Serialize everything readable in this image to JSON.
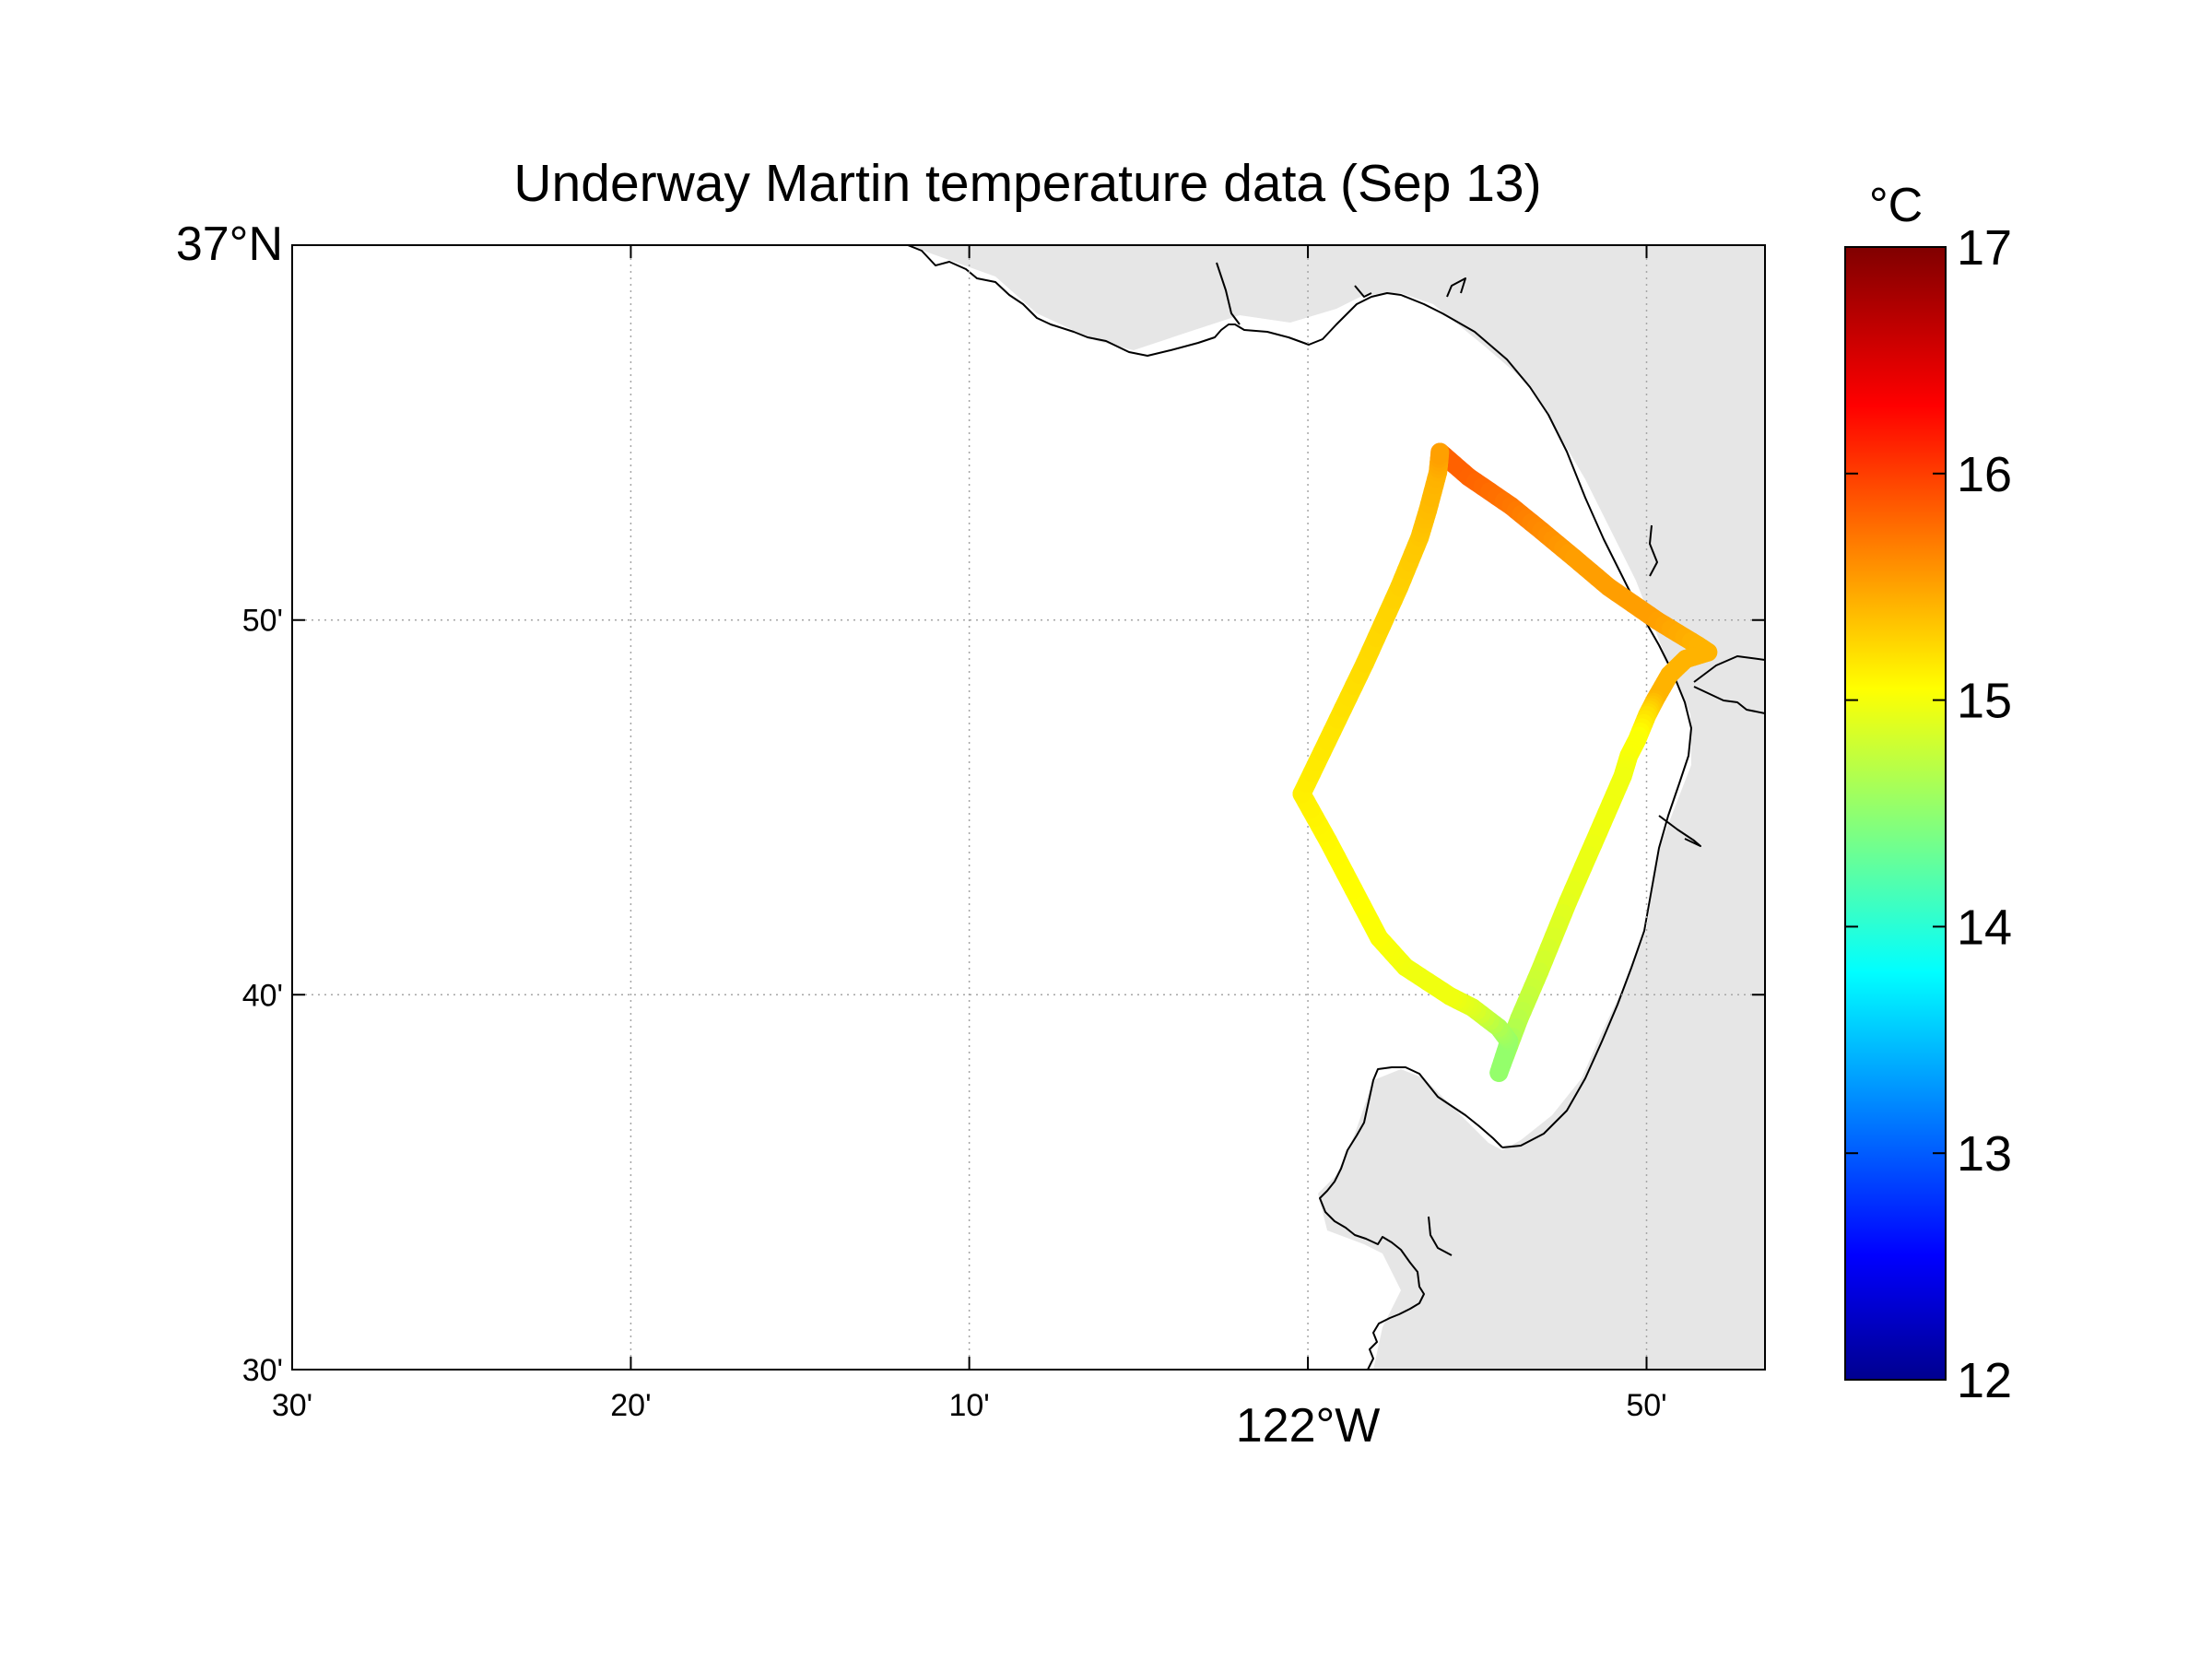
{
  "figure": {
    "title": "Underway Martin temperature data (Sep 13)"
  },
  "map": {
    "lon_range": [
      -122.5,
      -121.775
    ],
    "lat_range": [
      36.5,
      37.0
    ],
    "lat_ticks": [
      {
        "value": 37.0,
        "label": "37°N",
        "main": true
      },
      {
        "value": 36.8333,
        "label": "50'",
        "main": false
      },
      {
        "value": 36.6667,
        "label": "40'",
        "main": false
      },
      {
        "value": 36.5,
        "label": "30'",
        "main": false
      }
    ],
    "lon_ticks": [
      {
        "value": -122.5,
        "label": "30'",
        "main": false
      },
      {
        "value": -122.3333,
        "label": "20'",
        "main": false
      },
      {
        "value": -122.1667,
        "label": "10'",
        "main": false
      },
      {
        "value": -122.0,
        "label": "122°W",
        "main": true
      },
      {
        "value": -121.8333,
        "label": "50'",
        "main": false
      }
    ],
    "grid": true,
    "land_color": "#e6e6e6"
  },
  "chart_data": {
    "type": "scatter",
    "title": "Underway Martin temperature data (Sep 13)",
    "xlabel": "",
    "ylabel": "",
    "xlim": [
      -122.5,
      -121.775
    ],
    "ylim": [
      36.5,
      37.0
    ],
    "colorbar": {
      "label": "°C",
      "range": [
        12,
        17
      ],
      "ticks": [
        12,
        13,
        14,
        15,
        16,
        17
      ],
      "colormap": "jet"
    },
    "track": [
      {
        "lon": -121.935,
        "lat": 36.908,
        "temp": 15.9
      },
      {
        "lon": -121.921,
        "lat": 36.897,
        "temp": 15.9
      },
      {
        "lon": -121.9,
        "lat": 36.884,
        "temp": 15.8
      },
      {
        "lon": -121.885,
        "lat": 36.873,
        "temp": 15.7
      },
      {
        "lon": -121.869,
        "lat": 36.861,
        "temp": 15.6
      },
      {
        "lon": -121.852,
        "lat": 36.848,
        "temp": 15.6
      },
      {
        "lon": -121.828,
        "lat": 36.833,
        "temp": 15.6
      },
      {
        "lon": -121.808,
        "lat": 36.822,
        "temp": 15.5
      },
      {
        "lon": -121.803,
        "lat": 36.819,
        "temp": 15.5
      },
      {
        "lon": -121.814,
        "lat": 36.816,
        "temp": 15.5
      },
      {
        "lon": -121.822,
        "lat": 36.809,
        "temp": 15.5
      },
      {
        "lon": -121.829,
        "lat": 36.798,
        "temp": 15.5
      },
      {
        "lon": -121.833,
        "lat": 36.791,
        "temp": 15.3
      },
      {
        "lon": -121.838,
        "lat": 36.78,
        "temp": 15.1
      },
      {
        "lon": -121.842,
        "lat": 36.773,
        "temp": 15.1
      },
      {
        "lon": -121.845,
        "lat": 36.764,
        "temp": 15.05
      },
      {
        "lon": -121.857,
        "lat": 36.739,
        "temp": 15.05
      },
      {
        "lon": -121.872,
        "lat": 36.708,
        "temp": 15.0
      },
      {
        "lon": -121.886,
        "lat": 36.677,
        "temp": 14.9
      },
      {
        "lon": -121.896,
        "lat": 36.656,
        "temp": 14.8
      },
      {
        "lon": -121.906,
        "lat": 36.632,
        "temp": 14.6
      },
      {
        "lon": -121.901,
        "lat": 36.646,
        "temp": 14.6
      },
      {
        "lon": -121.906,
        "lat": 36.652,
        "temp": 14.7
      },
      {
        "lon": -121.919,
        "lat": 36.661,
        "temp": 14.95
      },
      {
        "lon": -121.93,
        "lat": 36.666,
        "temp": 15.05
      },
      {
        "lon": -121.952,
        "lat": 36.679,
        "temp": 15.05
      },
      {
        "lon": -121.965,
        "lat": 36.692,
        "temp": 15.1
      },
      {
        "lon": -121.99,
        "lat": 36.735,
        "temp": 15.15
      },
      {
        "lon": -122.003,
        "lat": 36.756,
        "temp": 15.2
      },
      {
        "lon": -121.988,
        "lat": 36.784,
        "temp": 15.25
      },
      {
        "lon": -121.972,
        "lat": 36.814,
        "temp": 15.3
      },
      {
        "lon": -121.955,
        "lat": 36.848,
        "temp": 15.35
      },
      {
        "lon": -121.945,
        "lat": 36.87,
        "temp": 15.4
      },
      {
        "lon": -121.941,
        "lat": 36.882,
        "temp": 15.45
      },
      {
        "lon": -121.936,
        "lat": 36.899,
        "temp": 15.5
      },
      {
        "lon": -121.935,
        "lat": 36.908,
        "temp": 15.6
      }
    ]
  }
}
